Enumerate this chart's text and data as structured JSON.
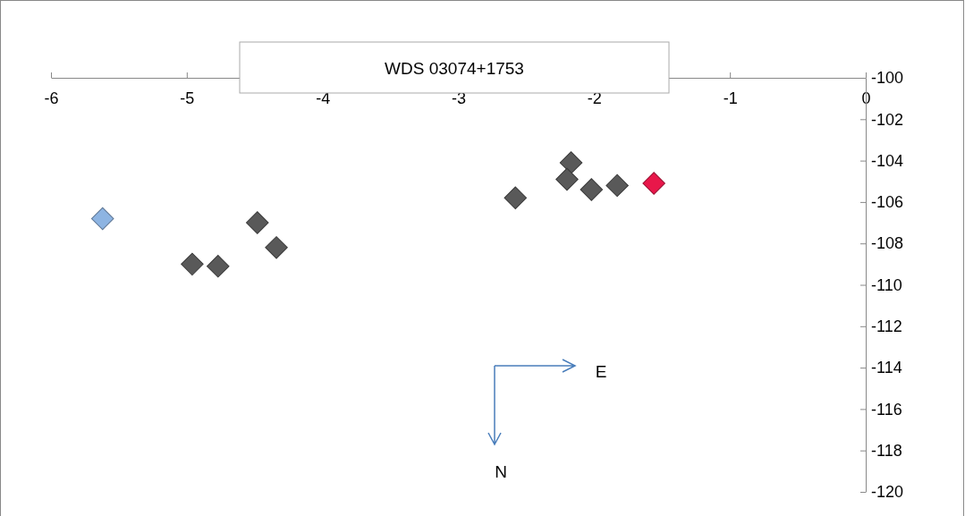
{
  "chart_data": {
    "type": "scatter",
    "title": "WDS 03074+1753",
    "marker": "diamond",
    "grid": false,
    "xlim": [
      -6,
      0
    ],
    "xticks": [
      -6,
      -5,
      -4,
      -3,
      -2,
      -1,
      0
    ],
    "ylim": [
      -120,
      -100
    ],
    "yticks": [
      -120,
      -118,
      -116,
      -114,
      -112,
      -110,
      -108,
      -106,
      -104,
      -102,
      -100
    ],
    "series": [
      {
        "color": "#595959",
        "x": [
          -4.96,
          -4.77,
          -4.48,
          -4.34,
          -2.58,
          -2.17,
          -2.2,
          -2.02,
          -1.83
        ],
        "values": [
          -109.0,
          -109.1,
          -107.0,
          -108.2,
          -105.8,
          -104.1,
          -104.9,
          -105.4,
          -105.2
        ]
      },
      {
        "color": "#8db4e2",
        "x": [
          -5.62
        ],
        "values": [
          -106.8
        ]
      },
      {
        "color": "#e8174a",
        "x": [
          -1.56
        ],
        "values": [
          -105.1
        ]
      }
    ],
    "annotations": [
      "E",
      "N"
    ]
  }
}
